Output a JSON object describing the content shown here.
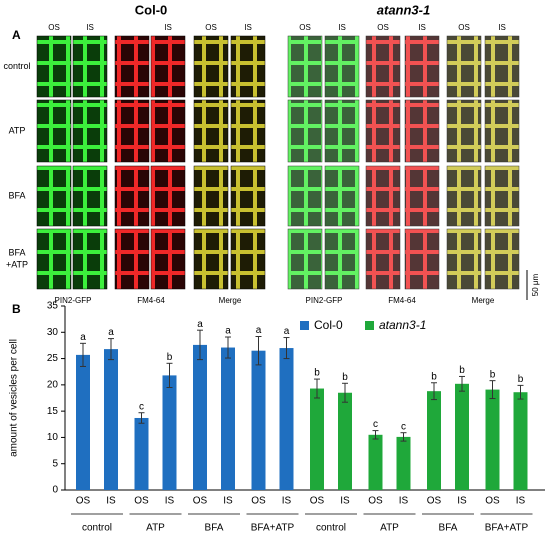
{
  "panel_a": {
    "letter": "A",
    "blocks": [
      {
        "title": "Col-0",
        "headers": [
          "OS",
          "IS",
          "IS",
          "OS",
          "IS"
        ],
        "channels": [
          "PIN2-GFP",
          "FM4-64",
          "Merge"
        ]
      },
      {
        "title": "atann3-1",
        "headers": [
          "OS",
          "IS",
          "OS",
          "IS",
          "OS",
          "IS"
        ],
        "channels": [
          "PIN2-GFP",
          "FM4-64",
          "Merge"
        ]
      }
    ],
    "row_labels": [
      [
        "control"
      ],
      [
        "ATP"
      ],
      [
        "BFA"
      ],
      [
        "BFA",
        "+ATP"
      ]
    ],
    "scale_bar": "50 μm"
  },
  "chart_data": {
    "type": "bar",
    "panel_letter": "B",
    "y_label": "amount of vesicles per cell",
    "categories": [
      "OS",
      "IS",
      "OS",
      "IS",
      "OS",
      "IS",
      "OS",
      "IS",
      "OS",
      "IS",
      "OS",
      "IS",
      "OS",
      "IS",
      "OS",
      "IS"
    ],
    "groups": [
      "control",
      "ATP",
      "BFA",
      "BFA+ATP",
      "control",
      "ATP",
      "BFA",
      "BFA+ATP"
    ],
    "series": [
      {
        "name": "Col-0",
        "color": "#1f6fc0",
        "values": [
          25.7,
          26.8,
          13.7,
          21.8,
          27.6,
          27.1,
          26.5,
          27.0,
          null,
          null,
          null,
          null,
          null,
          null,
          null,
          null
        ],
        "errors": [
          2.2,
          2.0,
          1.0,
          2.3,
          2.8,
          2.0,
          2.7,
          2.0,
          null,
          null,
          null,
          null,
          null,
          null,
          null,
          null
        ],
        "letters": [
          "a",
          "a",
          "c",
          "b",
          "a",
          "a",
          "a",
          "a",
          null,
          null,
          null,
          null,
          null,
          null,
          null,
          null
        ]
      },
      {
        "name": "atann3-1",
        "color": "#1fa83a",
        "values": [
          null,
          null,
          null,
          null,
          null,
          null,
          null,
          null,
          19.3,
          18.5,
          10.5,
          10.1,
          18.8,
          20.2,
          19.1,
          18.6
        ],
        "errors": [
          null,
          null,
          null,
          null,
          null,
          null,
          null,
          null,
          1.8,
          1.8,
          0.8,
          0.8,
          1.6,
          1.4,
          1.7,
          1.3
        ],
        "letters": [
          null,
          null,
          null,
          null,
          null,
          null,
          null,
          null,
          "b",
          "b",
          "c",
          "c",
          "b",
          "b",
          "b",
          "b"
        ]
      }
    ],
    "ylim": [
      0,
      35
    ],
    "yticks": [
      0,
      5,
      10,
      15,
      20,
      25,
      30,
      35
    ],
    "legend": "top"
  }
}
